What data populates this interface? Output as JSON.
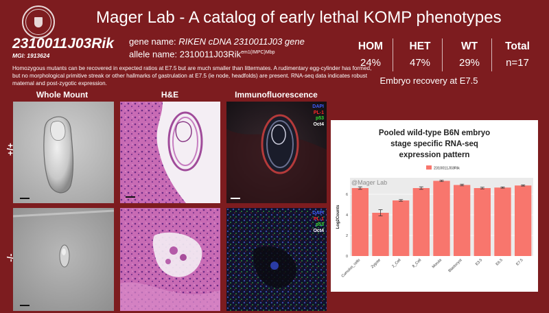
{
  "header": {
    "title": "Mager Lab - A catalog of early lethal KOMP phenotypes"
  },
  "gene": {
    "symbol": "2310011J03Rik",
    "mgi": "MGI: 1913624",
    "gene_name_label": "gene name: ",
    "gene_name": "RIKEN cDNA 2310011J03 gene",
    "allele_name_label": "allele name: ",
    "allele_base": "2310011J03Rik",
    "allele_sup": "em1(IMPC)Mbp"
  },
  "description": "Homozygous mutants can be recovered in expected ratios at E7.5 but are much smaller than littermates. A rudimentary egg-cylinder has formed, but no morphological primitive streak or other hallmarks of gastrulation at E7.5 (ie node, headfolds) are present. RNA-seq data indicates robust maternal and post-zygotic expression.",
  "stats": {
    "hom": {
      "label": "HOM",
      "value": "24%"
    },
    "het": {
      "label": "HET",
      "value": "47%"
    },
    "wt": {
      "label": "WT",
      "value": "29%"
    },
    "total": {
      "label": "Total",
      "value": "n=17"
    },
    "caption": "Embryo recovery at E7.5"
  },
  "images": {
    "col_whole_mount": "Whole Mount",
    "col_he": "H&E",
    "col_if": "Immunofluorescence",
    "row_wt": "+/+",
    "row_mut": "-/-",
    "if_legend": [
      "DAPI",
      "PL-1",
      "p53",
      "Oct4"
    ]
  },
  "colors": {
    "background": "#7d1c1f",
    "bar": "#f8766d",
    "dapi": "#3d5cff",
    "pl1": "#ff2a2a",
    "p53": "#33e033",
    "oct4": "#ffffff"
  },
  "chart_data": {
    "type": "bar",
    "title": "Pooled wild-type B6N embryo stage specific RNA-seq expression pattern",
    "title_lines": [
      "Pooled wild-type B6N embryo",
      "stage specific RNA-seq",
      "expression pattern"
    ],
    "watermark": "@Mager Lab",
    "legend": "2310011J03Rik",
    "legend_position": "top",
    "ylabel": "Log2Counts",
    "xlabel": "",
    "ylim": [
      0,
      7.6
    ],
    "yticks": [
      0,
      2,
      4,
      6
    ],
    "grid": true,
    "categories": [
      "Cumulus_cells",
      "Zygote",
      "2_Cell",
      "8_Cell",
      "Morula",
      "Blastocyst",
      "E3.5",
      "E6.5",
      "E7.5"
    ],
    "series": [
      {
        "name": "2310011J03Rik",
        "values": [
          6.6,
          4.2,
          5.4,
          6.6,
          7.3,
          6.9,
          6.6,
          6.65,
          6.85
        ],
        "errors": [
          0.12,
          0.3,
          0.08,
          0.12,
          0.06,
          0.08,
          0.08,
          0.06,
          0.06
        ]
      }
    ]
  }
}
